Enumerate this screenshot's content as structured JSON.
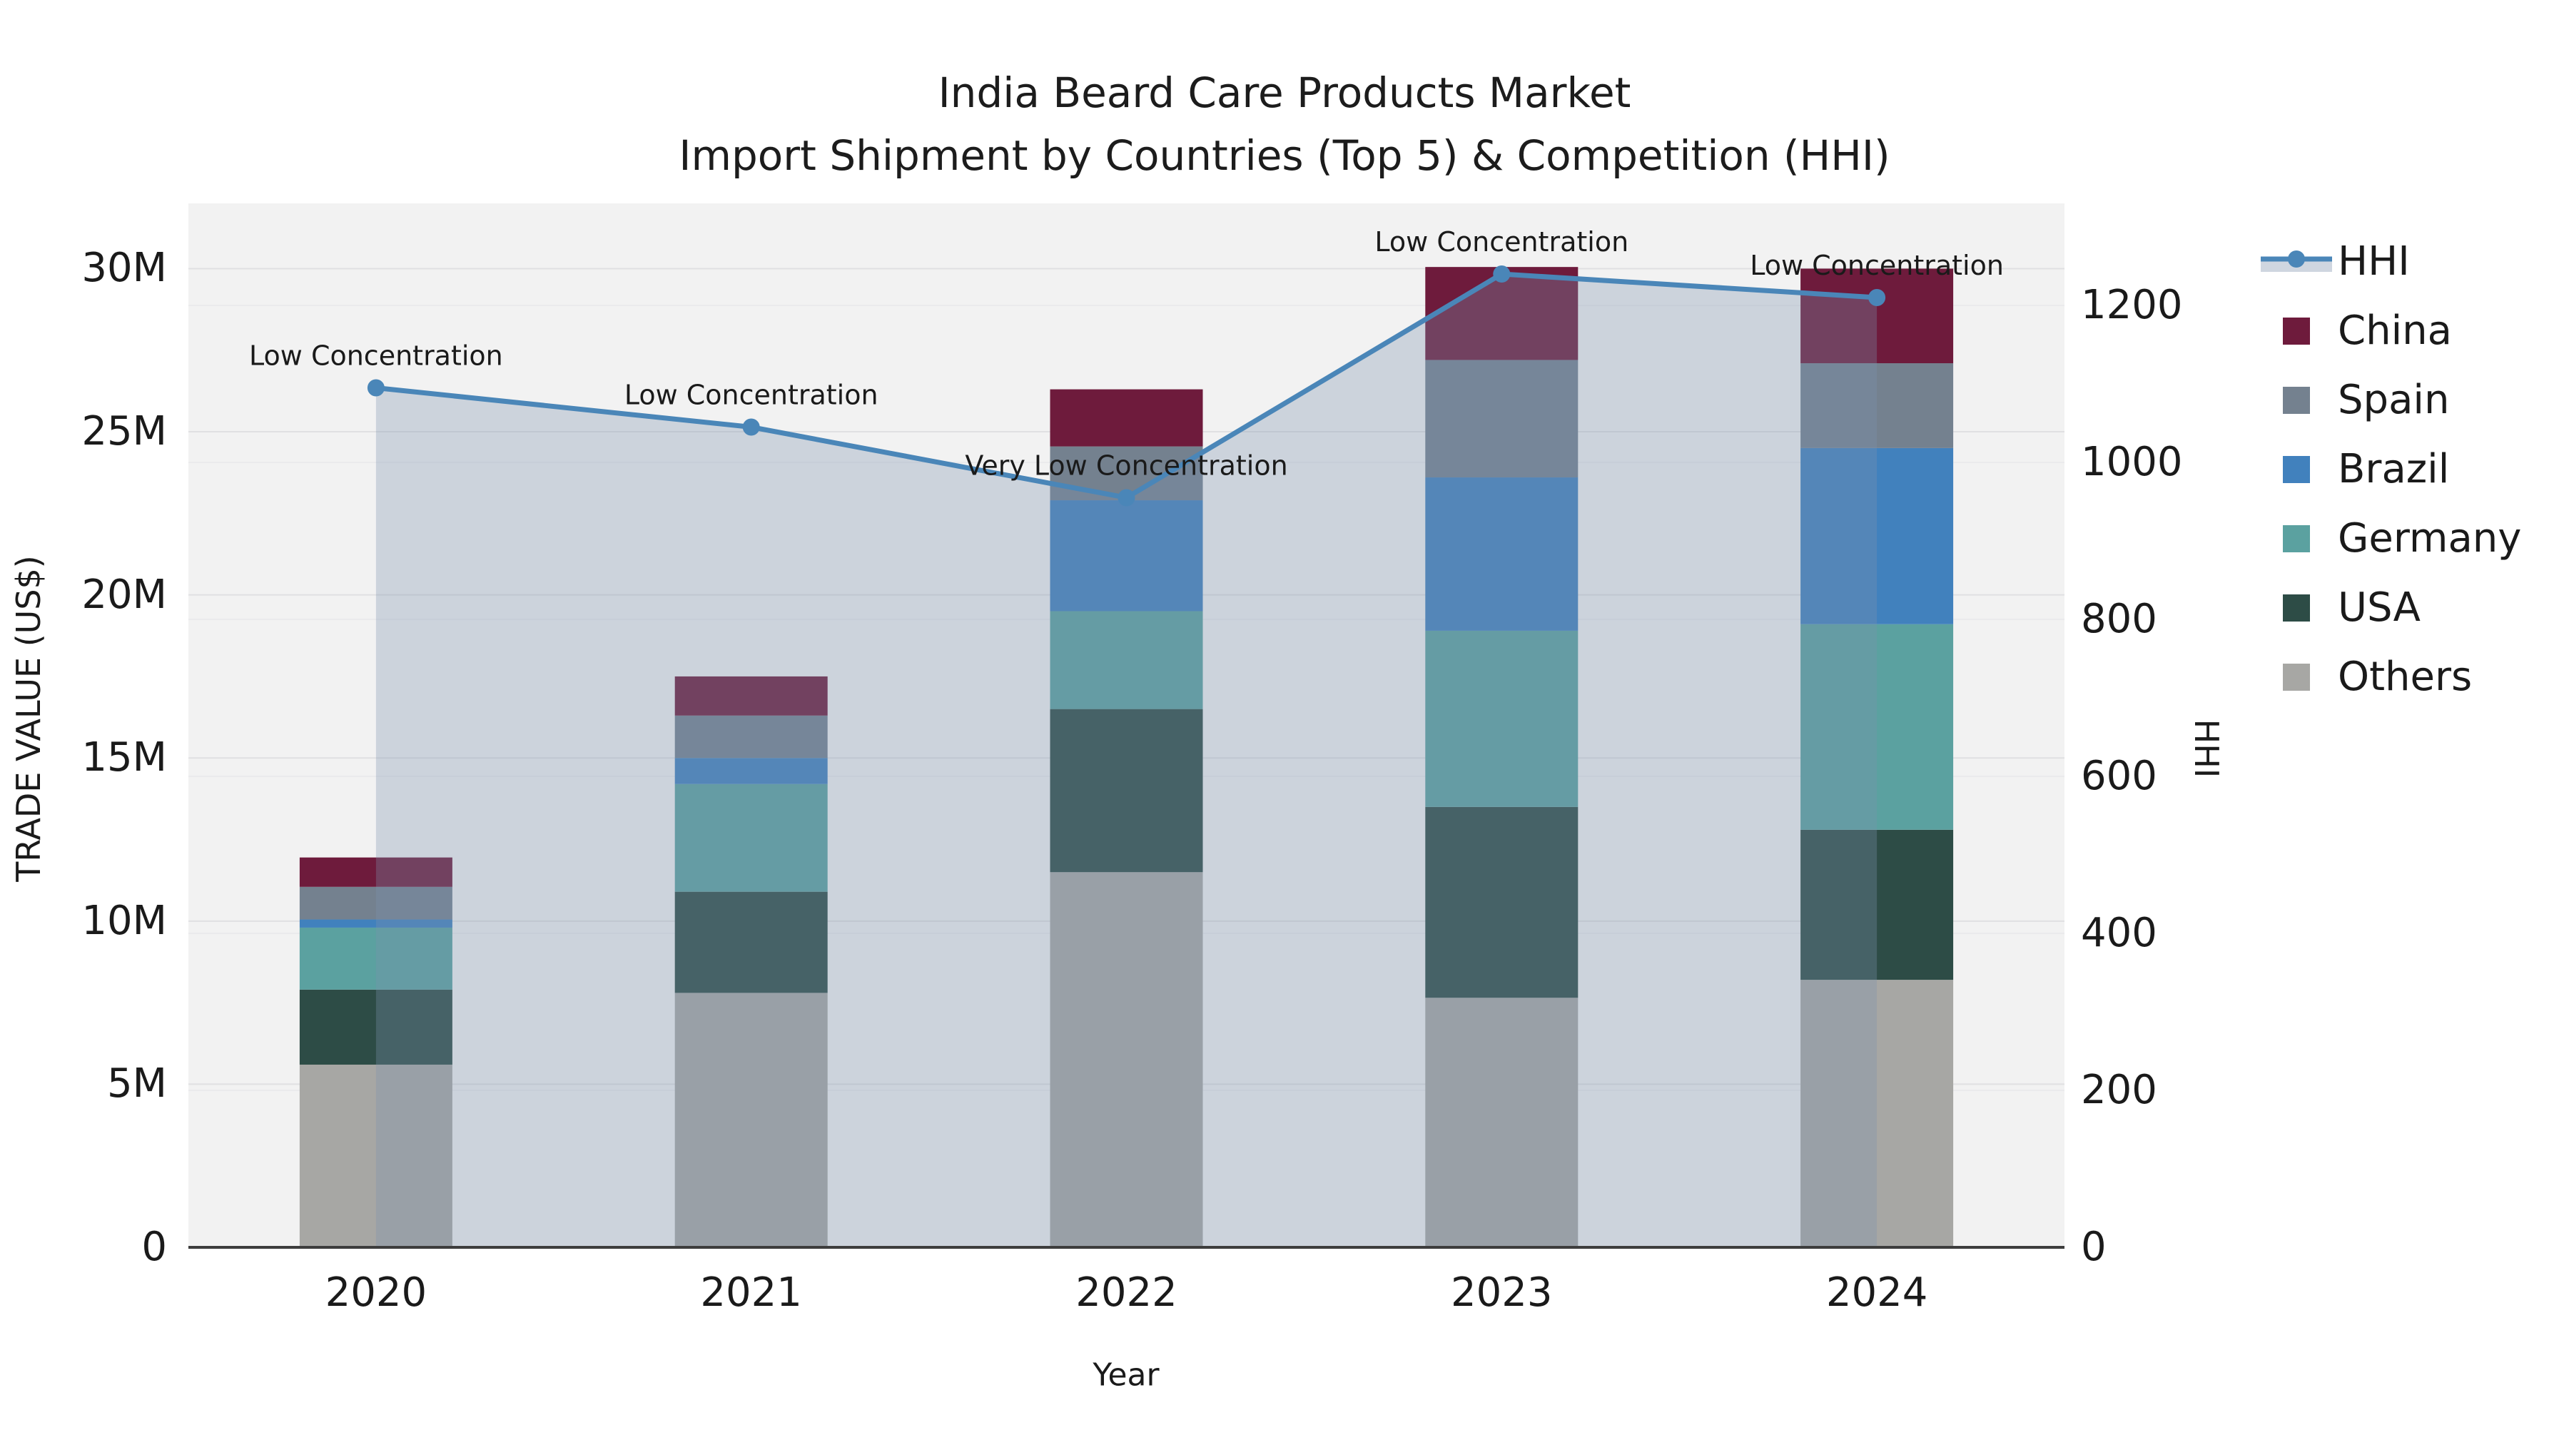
{
  "title": {
    "line1": "India Beard Care Products Market",
    "line2": "Import Shipment by Countries (Top 5) & Competition (HHI)"
  },
  "axes": {
    "y_left": {
      "label": "TRADE VALUE (US$)",
      "ticks": [
        "0",
        "5M",
        "10M",
        "15M",
        "20M",
        "25M",
        "30M"
      ],
      "tick_values": [
        0,
        5,
        10,
        15,
        20,
        25,
        30
      ]
    },
    "y_right": {
      "label": "HHI",
      "ticks": [
        "0",
        "200",
        "400",
        "600",
        "800",
        "1000",
        "1200"
      ],
      "tick_values": [
        0,
        200,
        400,
        600,
        800,
        1000,
        1200
      ]
    },
    "x": {
      "label": "Year",
      "ticks": [
        "2020",
        "2021",
        "2022",
        "2023",
        "2024"
      ]
    }
  },
  "legend": [
    {
      "label": "HHI",
      "type": "line",
      "color": "#4a86b8"
    },
    {
      "label": "China",
      "type": "square",
      "color": "#6e1b3c"
    },
    {
      "label": "Spain",
      "type": "square",
      "color": "#74818f"
    },
    {
      "label": "Brazil",
      "type": "square",
      "color": "#4181bd"
    },
    {
      "label": "Germany",
      "type": "square",
      "color": "#5ba1a0"
    },
    {
      "label": "USA",
      "type": "square",
      "color": "#2d4c46"
    },
    {
      "label": "Others",
      "type": "square",
      "color": "#a7a7a4"
    }
  ],
  "chart_data": {
    "type": "bar+line",
    "title": "India Beard Care Products Market — Import Shipment by Countries (Top 5) & Competition (HHI)",
    "categories": [
      "2020",
      "2021",
      "2022",
      "2023",
      "2024"
    ],
    "bar_value_unit": "million US$",
    "stack_order_bottom_to_top": [
      "Others",
      "USA",
      "Germany",
      "Brazil",
      "Spain",
      "China"
    ],
    "series": [
      {
        "name": "Others",
        "color": "#a7a7a4",
        "values": [
          5.6,
          7.8,
          11.5,
          7.65,
          8.2
        ]
      },
      {
        "name": "USA",
        "color": "#2d4c46",
        "values": [
          2.3,
          3.1,
          5.0,
          5.85,
          4.6
        ]
      },
      {
        "name": "Germany",
        "color": "#5ba1a0",
        "values": [
          1.9,
          3.3,
          3.0,
          5.4,
          6.3
        ]
      },
      {
        "name": "Brazil",
        "color": "#4181bd",
        "values": [
          0.25,
          0.8,
          3.4,
          4.7,
          5.4
        ]
      },
      {
        "name": "Spain",
        "color": "#74818f",
        "values": [
          1.0,
          1.3,
          1.65,
          3.6,
          2.6
        ]
      },
      {
        "name": "China",
        "color": "#6e1b3c",
        "values": [
          0.9,
          1.2,
          1.75,
          2.85,
          2.9
        ]
      }
    ],
    "bar_totals": [
      11.95,
      17.5,
      26.3,
      30.05,
      30.0
    ],
    "line": {
      "name": "HHI",
      "color": "#4a86b8",
      "area_fill": "rgba(125,145,175,0.32)",
      "values": [
        1095,
        1045,
        955,
        1240,
        1210
      ],
      "annotations": [
        "Low Concentration",
        "Low Concentration",
        "Very Low Concentration",
        "Low Concentration",
        "Low Concentration"
      ]
    },
    "xlabel": "Year",
    "ylabel_left": "TRADE VALUE (US$)",
    "ylabel_right": "HHI",
    "ylim_left": [
      0,
      32
    ],
    "ylim_right": [
      0,
      1330
    ],
    "grid": true,
    "legend_position": "right"
  }
}
